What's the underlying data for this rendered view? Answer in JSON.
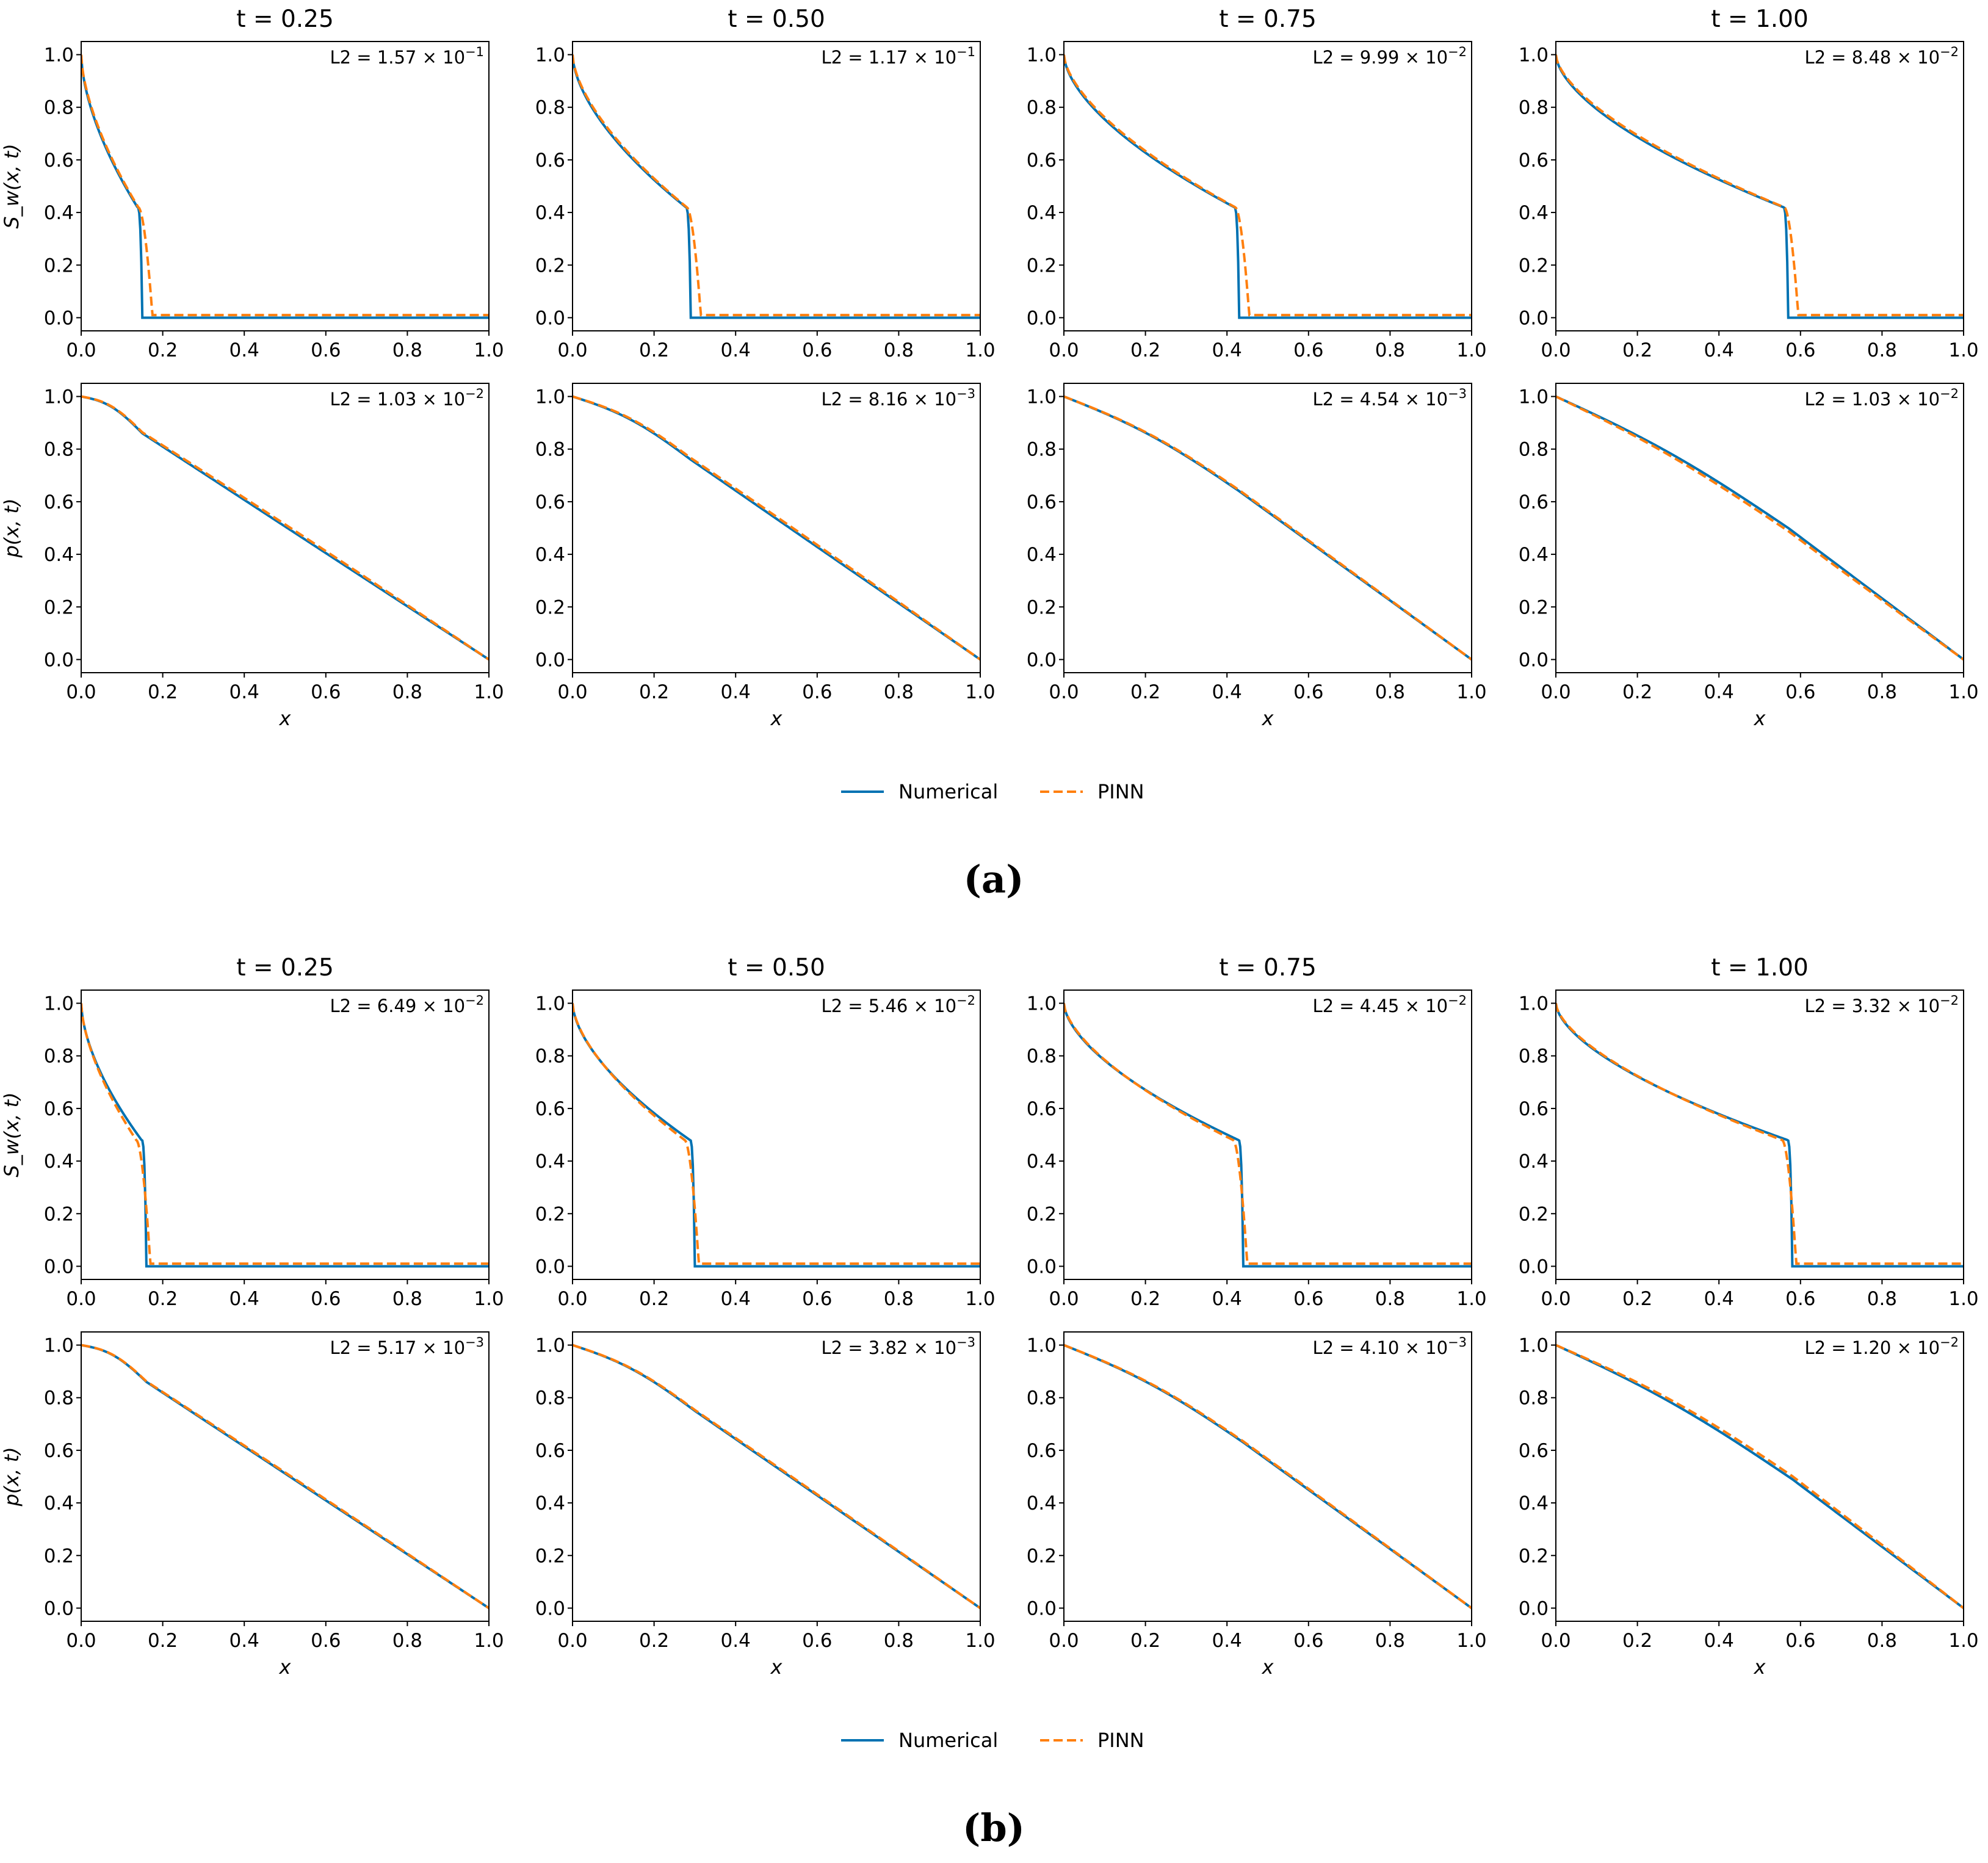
{
  "chart_data": [
    {
      "panel_label": "(a)",
      "type": "line",
      "column_titles": [
        "t = 0.25",
        "t = 0.50",
        "t = 0.75",
        "t = 1.00"
      ],
      "times": [
        0.25,
        0.5,
        0.75,
        1.0
      ],
      "legend": {
        "placement": "bottom-center",
        "entries": [
          "Numerical",
          "PINN"
        ]
      },
      "rows": [
        {
          "variable": "saturation",
          "ylabel": "S_w(x, t)",
          "xlabel": "",
          "xlim": [
            0,
            1
          ],
          "ylim": [
            -0.05,
            1.05
          ],
          "xticks": [
            "0.0",
            "0.2",
            "0.4",
            "0.6",
            "0.8",
            "1.0"
          ],
          "yticks": [
            "0.0",
            "0.2",
            "0.4",
            "0.6",
            "0.8",
            "1.0"
          ],
          "subplots": [
            {
              "l2_label": "L2 = 1.57 × 10",
              "l2_exp": "−1",
              "front_numerical": 0.15,
              "front_pinn": 0.175,
              "sat_at_front": 0.42,
              "pinn_tail": 0.01
            },
            {
              "l2_label": "L2 = 1.17 × 10",
              "l2_exp": "−1",
              "front_numerical": 0.29,
              "front_pinn": 0.315,
              "sat_at_front": 0.42,
              "pinn_tail": 0.01
            },
            {
              "l2_label": "L2 = 9.99 × 10",
              "l2_exp": "−2",
              "front_numerical": 0.43,
              "front_pinn": 0.455,
              "sat_at_front": 0.42,
              "pinn_tail": 0.01
            },
            {
              "l2_label": "L2 = 8.48 × 10",
              "l2_exp": "−2",
              "front_numerical": 0.57,
              "front_pinn": 0.595,
              "sat_at_front": 0.42,
              "pinn_tail": 0.01
            }
          ]
        },
        {
          "variable": "pressure",
          "ylabel": "p(x, t)",
          "xlabel": "x",
          "xlim": [
            0,
            1
          ],
          "ylim": [
            -0.05,
            1.05
          ],
          "xticks": [
            "0.0",
            "0.2",
            "0.4",
            "0.6",
            "0.8",
            "1.0"
          ],
          "yticks": [
            "0.0",
            "0.2",
            "0.4",
            "0.6",
            "0.8",
            "1.0"
          ],
          "subplots": [
            {
              "l2_label": "L2 = 1.03 × 10",
              "l2_exp": "−2",
              "front": 0.15,
              "p_at_front": 0.86,
              "pinn_offset": 0.01
            },
            {
              "l2_label": "L2 = 8.16 × 10",
              "l2_exp": "−3",
              "front": 0.29,
              "p_at_front": 0.76,
              "pinn_offset": 0.01
            },
            {
              "l2_label": "L2 = 4.54 × 10",
              "l2_exp": "−3",
              "front": 0.43,
              "p_at_front": 0.64,
              "pinn_offset": 0.005
            },
            {
              "l2_label": "L2 = 1.03 × 10",
              "l2_exp": "−2",
              "front": 0.57,
              "p_at_front": 0.5,
              "pinn_offset": -0.015
            }
          ]
        }
      ]
    },
    {
      "panel_label": "(b)",
      "type": "line",
      "column_titles": [
        "t = 0.25",
        "t = 0.50",
        "t = 0.75",
        "t = 1.00"
      ],
      "times": [
        0.25,
        0.5,
        0.75,
        1.0
      ],
      "legend": {
        "placement": "bottom-center",
        "entries": [
          "Numerical",
          "PINN"
        ]
      },
      "rows": [
        {
          "variable": "saturation",
          "ylabel": "S_w(x, t)",
          "xlabel": "",
          "xlim": [
            0,
            1
          ],
          "ylim": [
            -0.05,
            1.05
          ],
          "xticks": [
            "0.0",
            "0.2",
            "0.4",
            "0.6",
            "0.8",
            "1.0"
          ],
          "yticks": [
            "0.0",
            "0.2",
            "0.4",
            "0.6",
            "0.8",
            "1.0"
          ],
          "subplots": [
            {
              "l2_label": "L2 = 6.49 × 10",
              "l2_exp": "−2",
              "front_numerical": 0.16,
              "front_pinn": 0.17,
              "sat_at_front": 0.48,
              "pinn_tail": 0.01
            },
            {
              "l2_label": "L2 = 5.46 × 10",
              "l2_exp": "−2",
              "front_numerical": 0.3,
              "front_pinn": 0.31,
              "sat_at_front": 0.48,
              "pinn_tail": 0.01
            },
            {
              "l2_label": "L2 = 4.45 × 10",
              "l2_exp": "−2",
              "front_numerical": 0.44,
              "front_pinn": 0.45,
              "sat_at_front": 0.48,
              "pinn_tail": 0.01
            },
            {
              "l2_label": "L2 = 3.32 × 10",
              "l2_exp": "−2",
              "front_numerical": 0.58,
              "front_pinn": 0.59,
              "sat_at_front": 0.48,
              "pinn_tail": 0.01
            }
          ]
        },
        {
          "variable": "pressure",
          "ylabel": "p(x, t)",
          "xlabel": "x",
          "xlim": [
            0,
            1
          ],
          "ylim": [
            -0.05,
            1.05
          ],
          "xticks": [
            "0.0",
            "0.2",
            "0.4",
            "0.6",
            "0.8",
            "1.0"
          ],
          "yticks": [
            "0.0",
            "0.2",
            "0.4",
            "0.6",
            "0.8",
            "1.0"
          ],
          "subplots": [
            {
              "l2_label": "L2 = 5.17 × 10",
              "l2_exp": "−3",
              "front": 0.16,
              "p_at_front": 0.86,
              "pinn_offset": 0.005
            },
            {
              "l2_label": "L2 = 3.82 × 10",
              "l2_exp": "−3",
              "front": 0.3,
              "p_at_front": 0.75,
              "pinn_offset": 0.005
            },
            {
              "l2_label": "L2 = 4.10 × 10",
              "l2_exp": "−3",
              "front": 0.44,
              "p_at_front": 0.63,
              "pinn_offset": 0.005
            },
            {
              "l2_label": "L2 = 1.20 × 10",
              "l2_exp": "−2",
              "front": 0.58,
              "p_at_front": 0.49,
              "pinn_offset": 0.015
            }
          ]
        }
      ]
    }
  ],
  "colors": {
    "numerical": "#0072b2",
    "pinn": "#ff7f0e",
    "axes": "#000000"
  }
}
